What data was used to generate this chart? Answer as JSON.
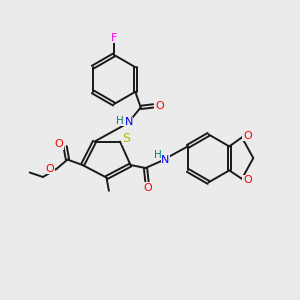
{
  "background_color": "#ebebeb",
  "bond_color": "#1a1a1a",
  "colors": {
    "F": "#ff00ff",
    "O": "#ff0000",
    "N": "#0000ff",
    "S": "#b8b800",
    "H": "#008080",
    "C": "#1a1a1a"
  },
  "figsize": [
    3.0,
    3.0
  ],
  "dpi": 100
}
